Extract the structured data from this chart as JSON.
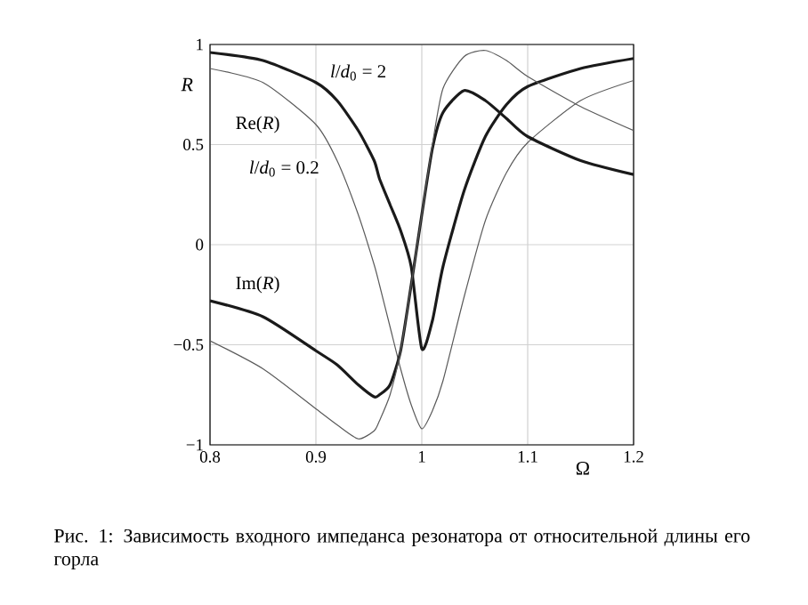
{
  "chart_data": {
    "type": "line",
    "xlabel": "Ω",
    "ylabel": "*R*",
    "x": [
      0.8,
      0.85,
      0.9,
      0.92,
      0.94,
      0.955,
      0.96,
      0.97,
      0.98,
      0.99,
      1.0,
      1.01,
      1.02,
      1.04,
      1.06,
      1.08,
      1.1,
      1.15,
      1.2
    ],
    "series": [
      {
        "color": "#1a1a1a",
        "values": [
          0.96,
          0.92,
          0.81,
          0.72,
          0.57,
          0.42,
          0.33,
          0.2,
          0.07,
          -0.11,
          -0.52,
          -0.38,
          -0.11,
          0.27,
          0.54,
          0.7,
          0.79,
          0.88,
          0.93
        ]
      },
      {
        "color": "#5a5a5a",
        "values": [
          0.88,
          0.81,
          0.6,
          0.42,
          0.15,
          -0.1,
          -0.2,
          -0.41,
          -0.62,
          -0.8,
          -0.92,
          -0.83,
          -0.68,
          -0.26,
          0.12,
          0.36,
          0.51,
          0.72,
          0.82
        ]
      },
      {
        "color": "#1a1a1a",
        "values": [
          -0.28,
          -0.36,
          -0.53,
          -0.6,
          -0.7,
          -0.76,
          -0.75,
          -0.7,
          -0.53,
          -0.2,
          0.15,
          0.48,
          0.66,
          0.77,
          0.72,
          0.63,
          0.54,
          0.42,
          0.35
        ]
      },
      {
        "color": "#5a5a5a",
        "values": [
          -0.48,
          -0.62,
          -0.82,
          -0.9,
          -0.97,
          -0.93,
          -0.88,
          -0.75,
          -0.53,
          -0.2,
          0.15,
          0.5,
          0.78,
          0.94,
          0.97,
          0.92,
          0.84,
          0.69,
          0.57
        ]
      }
    ],
    "xlim": [
      0.8,
      1.2
    ],
    "ylim": [
      -1,
      1
    ],
    "xticks": [
      0.8,
      0.9,
      1,
      1.1,
      1.2
    ],
    "yticks": [
      {
        "value": -1,
        "label": "−1"
      },
      {
        "value": -0.5,
        "label": "−0.5"
      },
      0,
      0.5,
      1
    ],
    "grid": true,
    "marker": "none",
    "line_style": "solid",
    "annotations": [
      "Re(*R*)",
      "Im(*R*)",
      "*l*/*d*$_{0}$ = 2",
      "*l*/*d*$_{0}$ = 0.2",
      "Рис. 1: Зависимость входного импеданса резонатора от относительной длины его горла"
    ]
  }
}
